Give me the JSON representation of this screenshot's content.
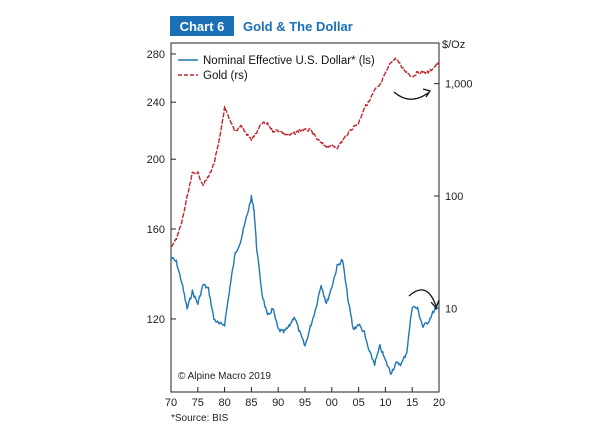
{
  "chart_data": {
    "type": "line",
    "badge": "Chart 6",
    "title": "Gold & The Dollar",
    "right_axis_unit": "$/Oz",
    "x_ticks": [
      "70",
      "75",
      "80",
      "85",
      "90",
      "95",
      "00",
      "05",
      "10",
      "15",
      "20"
    ],
    "x_range": [
      1970,
      2020
    ],
    "left_axis": {
      "scale": "log",
      "range": [
        95,
        290
      ],
      "ticks": [
        "120",
        "160",
        "200",
        "240",
        "280"
      ]
    },
    "right_axis": {
      "scale": "log",
      "range": [
        1.8,
        2300
      ],
      "ticks": [
        "10",
        "100",
        "1,000"
      ]
    },
    "series": [
      {
        "name": "Nominal Effective U.S. Dollar* (ls)",
        "axis": "left",
        "color": "#1f77b4",
        "style": "solid",
        "x": [
          1970,
          1971,
          1972,
          1973,
          1974,
          1975,
          1976,
          1977,
          1978,
          1979,
          1980,
          1981,
          1982,
          1983,
          1984,
          1985,
          1985.5,
          1986,
          1987,
          1988,
          1989,
          1990,
          1991,
          1992,
          1993,
          1994,
          1995,
          1996,
          1997,
          1998,
          1999,
          2000,
          2001,
          2002,
          2003,
          2004,
          2005,
          2006,
          2007,
          2008,
          2009,
          2010,
          2011,
          2012,
          2013,
          2014,
          2015,
          2016,
          2017,
          2018,
          2019,
          2020
        ],
        "values": [
          146,
          144,
          135,
          124,
          131,
          126,
          134,
          132,
          120,
          118,
          118,
          133,
          148,
          154,
          165,
          177,
          170,
          150,
          130,
          121,
          124,
          116,
          115,
          117,
          121,
          115,
          110,
          117,
          124,
          134,
          126,
          133,
          142,
          145,
          128,
          116,
          118,
          115,
          108,
          104,
          110,
          105,
          101,
          104,
          104,
          108,
          125,
          124,
          117,
          119,
          123,
          124
        ]
      },
      {
        "name": "Gold (rs)",
        "axis": "right",
        "color": "#c0262d",
        "style": "dashed",
        "x": [
          1970,
          1971,
          1972,
          1973,
          1974,
          1975,
          1976,
          1977,
          1978,
          1979,
          1980,
          1981,
          1982,
          1983,
          1984,
          1985,
          1986,
          1987,
          1988,
          1989,
          1990,
          1991,
          1992,
          1993,
          1994,
          1995,
          1996,
          1997,
          1998,
          1999,
          2000,
          2001,
          2002,
          2003,
          2004,
          2005,
          2006,
          2007,
          2008,
          2009,
          2010,
          2011,
          2012,
          2013,
          2014,
          2015,
          2016,
          2017,
          2018,
          2019,
          2020
        ],
        "values": [
          36,
          41,
          58,
          97,
          159,
          161,
          125,
          148,
          193,
          307,
          612,
          460,
          376,
          424,
          361,
          317,
          368,
          447,
          437,
          381,
          384,
          362,
          344,
          360,
          384,
          384,
          388,
          331,
          294,
          279,
          279,
          271,
          310,
          363,
          409,
          445,
          604,
          695,
          872,
          972,
          1225,
          1572,
          1669,
          1411,
          1266,
          1160,
          1251,
          1257,
          1268,
          1393,
          1520
        ]
      }
    ],
    "annotations": [
      "© Alpine Macro 2019"
    ],
    "footnote": "*Source: BIS"
  }
}
